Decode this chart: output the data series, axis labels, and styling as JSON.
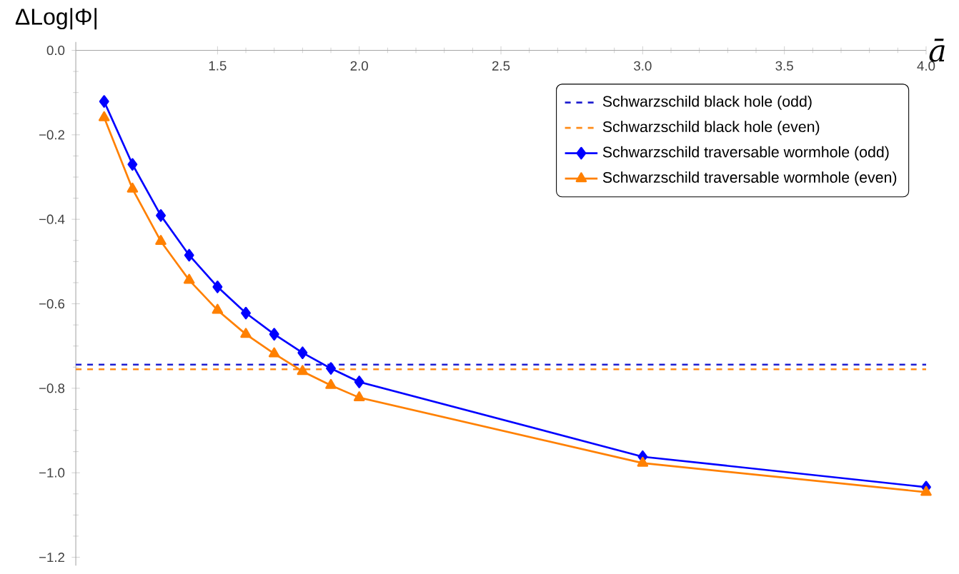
{
  "chart_data": {
    "type": "line",
    "xlabel": "ā",
    "ylabel": "ΔLog|Φ|",
    "xlim": [
      1.0,
      4.0
    ],
    "ylim": [
      -1.22,
      0.02
    ],
    "xticks": [
      {
        "value": 1.5,
        "label": "1.5"
      },
      {
        "value": 2.0,
        "label": "2.0"
      },
      {
        "value": 2.5,
        "label": "2.5"
      },
      {
        "value": 3.0,
        "label": "3.0"
      },
      {
        "value": 3.5,
        "label": "3.5"
      },
      {
        "value": 4.0,
        "label": "4.0"
      }
    ],
    "yticks": [
      {
        "value": 0,
        "label": "0.0"
      },
      {
        "value": -0.2,
        "label": "−0.2"
      },
      {
        "value": -0.4,
        "label": "−0.4"
      },
      {
        "value": -0.6,
        "label": "−0.6"
      },
      {
        "value": -0.8,
        "label": "−0.8"
      },
      {
        "value": -1.0,
        "label": "−1.0"
      },
      {
        "value": -1.2,
        "label": "−1.2"
      }
    ],
    "legend": "top right",
    "grid": false,
    "series": [
      {
        "name": "Schwarzschild black hole (odd)",
        "color": "#1f1fd0",
        "marker": "none",
        "line_style": "dashed",
        "x": [
          1.0,
          4.0
        ],
        "values": [
          -0.744,
          -0.744
        ]
      },
      {
        "name": "Schwarzschild black hole (even)",
        "color": "#ff8c1a",
        "marker": "none",
        "line_style": "dashed",
        "x": [
          1.0,
          4.0
        ],
        "values": [
          -0.755,
          -0.755
        ]
      },
      {
        "name": "Schwarzschild traversable wormhole (odd)",
        "color": "#0000ff",
        "marker": "diamond",
        "line_style": "solid",
        "x": [
          1.1,
          1.2,
          1.3,
          1.4,
          1.5,
          1.6,
          1.7,
          1.8,
          1.9,
          2.0,
          3.0,
          4.0
        ],
        "values": [
          -0.121,
          -0.27,
          -0.391,
          -0.485,
          -0.56,
          -0.622,
          -0.672,
          -0.716,
          -0.753,
          -0.785,
          -0.962,
          -1.034
        ]
      },
      {
        "name": "Schwarzschild traversable wormhole (even)",
        "color": "#ff8000",
        "marker": "triangle",
        "line_style": "solid",
        "x": [
          1.1,
          1.2,
          1.3,
          1.4,
          1.5,
          1.6,
          1.7,
          1.8,
          1.9,
          2.0,
          3.0,
          4.0
        ],
        "values": [
          -0.159,
          -0.328,
          -0.452,
          -0.544,
          -0.615,
          -0.672,
          -0.718,
          -0.76,
          -0.793,
          -0.822,
          -0.977,
          -1.046
        ]
      }
    ]
  }
}
